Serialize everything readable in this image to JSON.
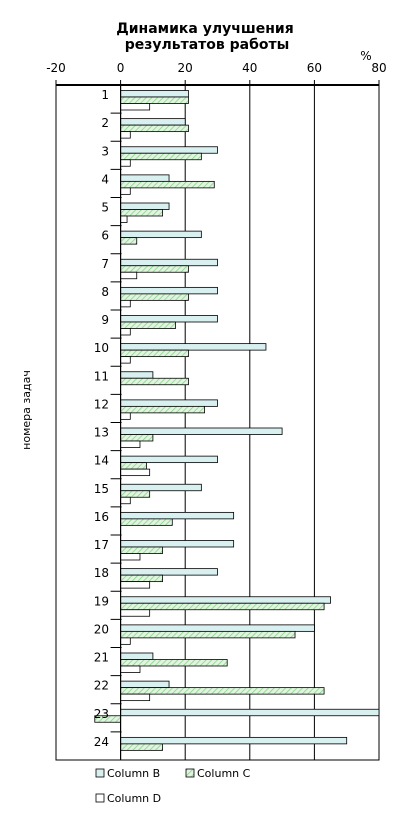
{
  "chart_data": {
    "type": "bar",
    "orientation": "horizontal",
    "title": [
      "Динамика улучшения",
      "результатов работы"
    ],
    "unit_label": "%",
    "ylabel": "номера задач",
    "xlim": [
      -20,
      80
    ],
    "x_ticks": [
      -20,
      0,
      20,
      40,
      60,
      80
    ],
    "grid": true,
    "legend_position": "bottom",
    "categories": [
      "1",
      "2",
      "3",
      "4",
      "5",
      "6",
      "7",
      "8",
      "9",
      "10",
      "11",
      "12",
      "13",
      "14",
      "15",
      "16",
      "17",
      "18",
      "19",
      "20",
      "21",
      "22",
      "23",
      "24"
    ],
    "series": [
      {
        "name": "Column B",
        "color": "#d8f0f0",
        "values": [
          21,
          20,
          30,
          15,
          15,
          25,
          30,
          30,
          30,
          45,
          10,
          30,
          50,
          30,
          25,
          35,
          35,
          30,
          65,
          60,
          10,
          15,
          80,
          70
        ]
      },
      {
        "name": "Column C",
        "color": "#c8ecc8",
        "values": [
          21,
          21,
          25,
          29,
          13,
          5,
          21,
          21,
          17,
          21,
          21,
          26,
          10,
          8,
          9,
          16,
          13,
          13,
          63,
          54,
          33,
          63,
          -8,
          13
        ]
      },
      {
        "name": "Column D",
        "color": "#ffffff",
        "values": [
          9,
          3,
          3,
          3,
          2,
          0,
          5,
          3,
          3,
          3,
          0,
          3,
          6,
          9,
          3,
          0,
          6,
          9,
          9,
          3,
          6,
          9,
          0,
          0
        ]
      }
    ]
  }
}
